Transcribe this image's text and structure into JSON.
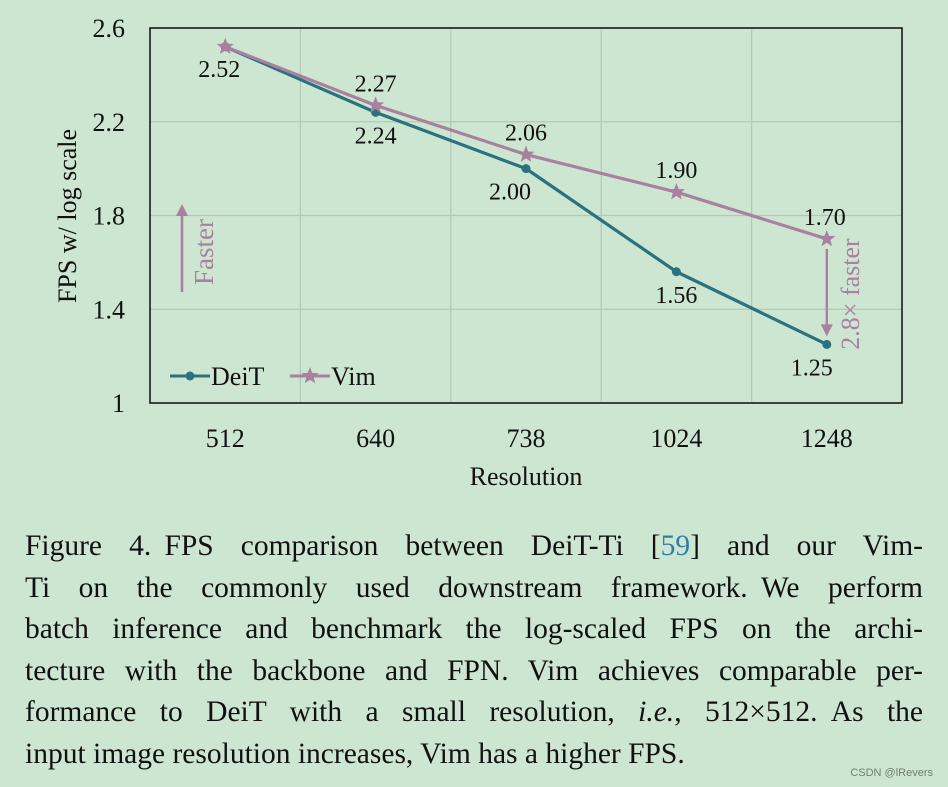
{
  "chart_data": {
    "type": "line",
    "title": "",
    "xlabel": "Resolution",
    "ylabel": "FPS w/ log scale",
    "categories": [
      "512",
      "640",
      "738",
      "1024",
      "1248"
    ],
    "ylim": [
      1,
      2.6
    ],
    "yticks": [
      1,
      1.4,
      1.8,
      2.2,
      2.6
    ],
    "ytick_labels": [
      "1",
      "1.4",
      "1.8",
      "2.2",
      "2.6"
    ],
    "grid": true,
    "legend_position": "bottom-left",
    "series": [
      {
        "name": "DeiT",
        "marker": "circle",
        "color": "#2a7280",
        "values": [
          2.52,
          2.24,
          2.0,
          1.56,
          1.25
        ],
        "labels": [
          "",
          "2.24",
          "2.00",
          "1.56",
          "1.25"
        ]
      },
      {
        "name": "Vim",
        "marker": "star",
        "color": "#a9809e",
        "values": [
          2.52,
          2.27,
          2.06,
          1.9,
          1.7
        ],
        "labels": [
          "2.52",
          "2.27",
          "2.06",
          "1.90",
          "1.70"
        ]
      }
    ],
    "annotations": {
      "faster_arrow": "Faster",
      "speedup": "2.8× faster"
    }
  },
  "caption": {
    "lines": [
      [
        "Figure 4.",
        "FPS comparison between DeiT-Ti [",
        "59",
        "] and our Vim-"
      ],
      [
        "Ti on the commonly used downstream framework.",
        "We perform"
      ],
      [
        "batch inference and benchmark the log-scaled FPS on the archi-"
      ],
      [
        "tecture with the backbone and FPN. Vim achieves comparable per-"
      ],
      [
        "formance to DeiT with a small resolution, ",
        "i.e.",
        ", 512×512.",
        "As the"
      ],
      [
        "input image resolution increases, Vim has a higher FPS."
      ]
    ]
  },
  "watermark": "CSDN @lRevers",
  "colors": {
    "background": "#cde6d1",
    "deit": "#2a7280",
    "vim": "#a9809e",
    "grid": "#b3c9b7",
    "axis_text": "#111111",
    "reference_link": "#2e7fa8"
  }
}
